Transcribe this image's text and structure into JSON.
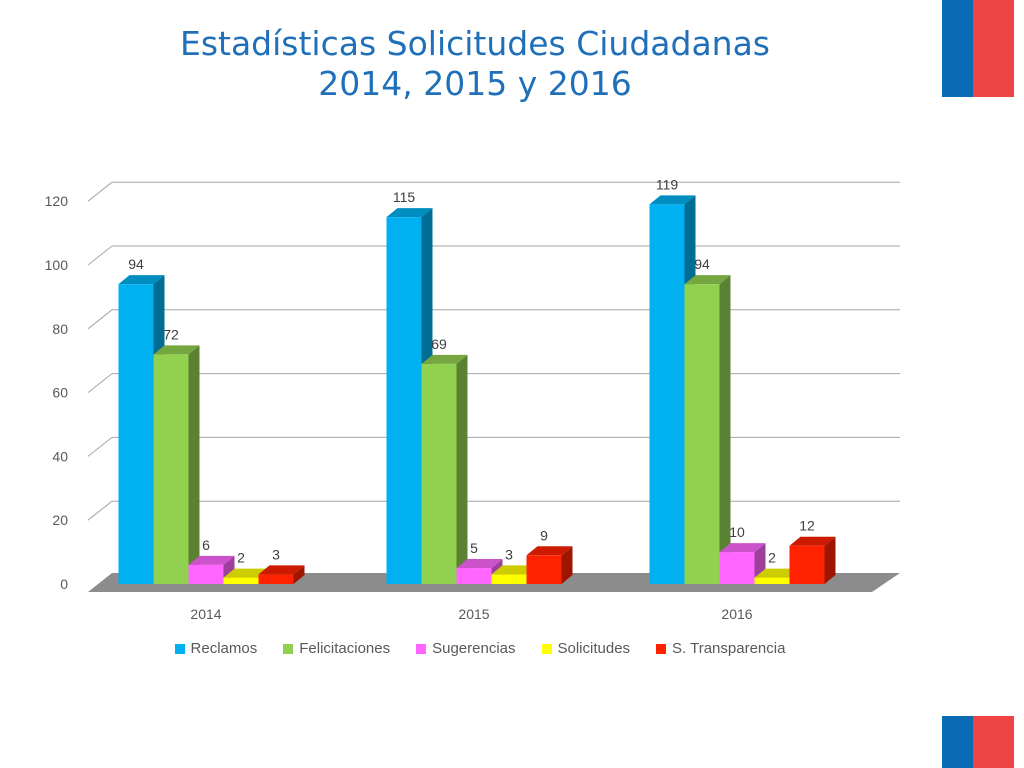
{
  "title": {
    "line1": "Estadísticas Solicitudes Ciudadanas",
    "line2": "2014, 2015 y 2016"
  },
  "flag_colors": {
    "blue": "#0a6bb5",
    "red": "#ef4444"
  },
  "chart_data": {
    "type": "bar",
    "style": "3d-clustered-column",
    "title": "",
    "xlabel": "",
    "ylabel": "",
    "categories": [
      "2014",
      "2015",
      "2016"
    ],
    "ylim": [
      0,
      120
    ],
    "yticks": [
      0,
      20,
      40,
      60,
      80,
      100,
      120
    ],
    "grid": true,
    "legend_position": "bottom",
    "series": [
      {
        "name": "Reclamos",
        "values": [
          94,
          115,
          119
        ],
        "color": "#00b0f0"
      },
      {
        "name": "Felicitaciones",
        "values": [
          72,
          69,
          94
        ],
        "color": "#92d050"
      },
      {
        "name": "Sugerencias",
        "values": [
          6,
          5,
          10
        ],
        "color": "#ff66ff"
      },
      {
        "name": "Solicitudes",
        "values": [
          2,
          3,
          2
        ],
        "color": "#ffff00"
      },
      {
        "name": "S. Transparencia",
        "values": [
          3,
          9,
          12
        ],
        "color": "#ff2200"
      }
    ]
  }
}
